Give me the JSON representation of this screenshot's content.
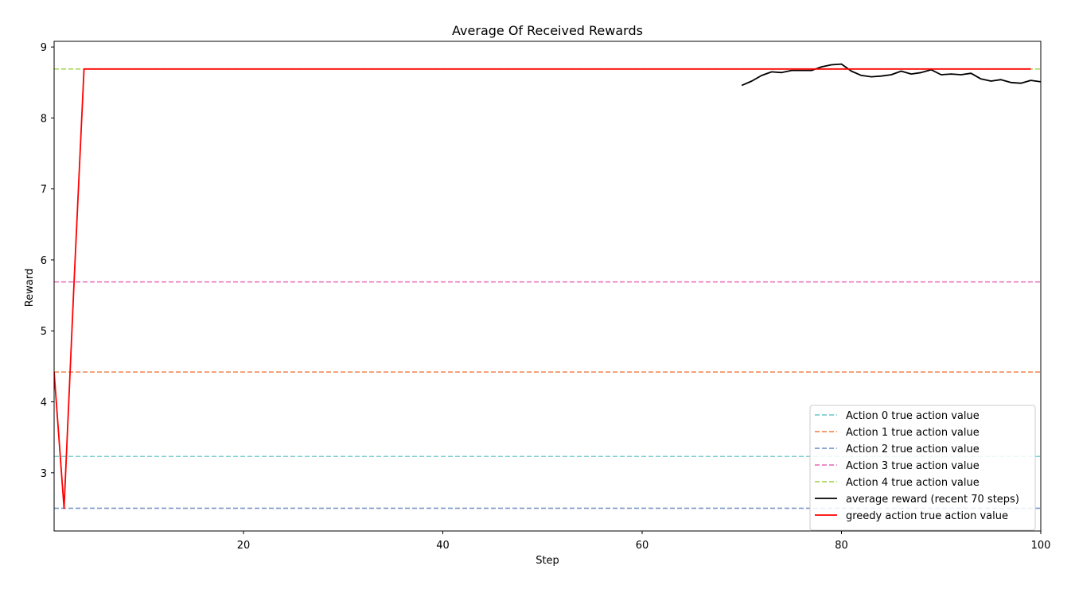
{
  "chart_data": {
    "type": "line",
    "title": "Average Of Received Rewards",
    "xlabel": "Step",
    "ylabel": "Reward",
    "xlim": [
      1,
      100
    ],
    "ylim": [
      2.18,
      9.08
    ],
    "xticks": [
      20,
      40,
      60,
      80,
      100
    ],
    "yticks": [
      3,
      4,
      5,
      6,
      7,
      8,
      9
    ],
    "grid": false,
    "legend_position": "bottom-right",
    "reference_lines": [
      {
        "name": "Action 0 true action value",
        "y": 3.23,
        "color": "#7fcdcd",
        "dashed": true
      },
      {
        "name": "Action 1 true action value",
        "y": 4.42,
        "color": "#f28e5c",
        "dashed": true
      },
      {
        "name": "Action 2 true action value",
        "y": 2.5,
        "color": "#7e9bc8",
        "dashed": true
      },
      {
        "name": "Action 3 true action value",
        "y": 5.69,
        "color": "#e87bc0",
        "dashed": true
      },
      {
        "name": "Action 4 true action value",
        "y": 8.69,
        "color": "#a9d65b",
        "dashed": true
      }
    ],
    "series": [
      {
        "name": "average reward (recent 70 steps)",
        "color": "#000000",
        "x": [
          70,
          71,
          72,
          73,
          74,
          75,
          76,
          77,
          78,
          79,
          80,
          81,
          82,
          83,
          84,
          85,
          86,
          87,
          88,
          89,
          90,
          91,
          92,
          93,
          94,
          95,
          96,
          97,
          98,
          99,
          100
        ],
        "values": [
          8.46,
          8.52,
          8.6,
          8.65,
          8.64,
          8.67,
          8.67,
          8.67,
          8.72,
          8.75,
          8.76,
          8.66,
          8.6,
          8.58,
          8.59,
          8.61,
          8.66,
          8.62,
          8.64,
          8.68,
          8.61,
          8.62,
          8.61,
          8.63,
          8.55,
          8.52,
          8.54,
          8.5,
          8.49,
          8.53,
          8.51
        ]
      },
      {
        "name": "greedy action true action value",
        "color": "#ff0000",
        "x": [
          1,
          2,
          3,
          4,
          5,
          10,
          20,
          30,
          40,
          50,
          60,
          70,
          80,
          90,
          99
        ],
        "values": [
          4.42,
          2.5,
          5.69,
          8.69,
          8.69,
          8.69,
          8.69,
          8.69,
          8.69,
          8.69,
          8.69,
          8.69,
          8.69,
          8.69,
          8.69
        ]
      }
    ]
  }
}
